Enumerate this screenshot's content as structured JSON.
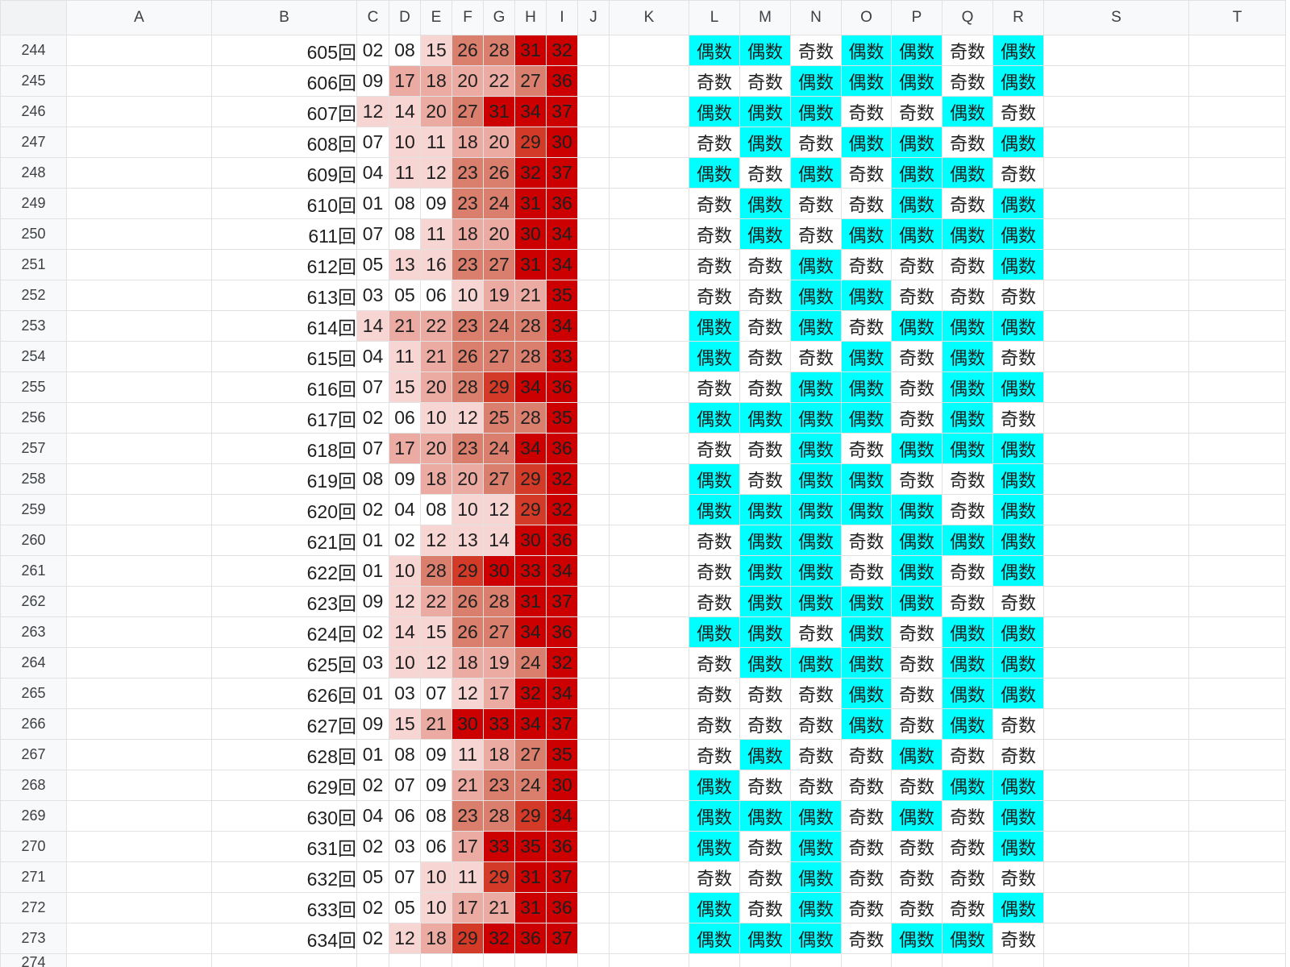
{
  "columns": [
    "A",
    "B",
    "C",
    "D",
    "E",
    "F",
    "G",
    "H",
    "I",
    "J",
    "K",
    "L",
    "M",
    "N",
    "O",
    "P",
    "Q",
    "R",
    "S",
    "T"
  ],
  "partial_row": "274",
  "colors": {
    "even_fill": "#00ffff",
    "heat_scale": [
      "#ffffff",
      "#f6d5d2",
      "#ebaaa2",
      "#da7e6d",
      "#d33a28",
      "#cc0000"
    ]
  },
  "rows": [
    {
      "row": "244",
      "draw": "605回",
      "nums": [
        "02",
        "08",
        "15",
        "26",
        "28",
        "31",
        "32"
      ],
      "parity": [
        "偶数",
        "偶数",
        "奇数",
        "偶数",
        "偶数",
        "奇数",
        "偶数"
      ]
    },
    {
      "row": "245",
      "draw": "606回",
      "nums": [
        "09",
        "17",
        "18",
        "20",
        "22",
        "27",
        "36"
      ],
      "parity": [
        "奇数",
        "奇数",
        "偶数",
        "偶数",
        "偶数",
        "奇数",
        "偶数"
      ]
    },
    {
      "row": "246",
      "draw": "607回",
      "nums": [
        "12",
        "14",
        "20",
        "27",
        "31",
        "34",
        "37"
      ],
      "parity": [
        "偶数",
        "偶数",
        "偶数",
        "奇数",
        "奇数",
        "偶数",
        "奇数"
      ]
    },
    {
      "row": "247",
      "draw": "608回",
      "nums": [
        "07",
        "10",
        "11",
        "18",
        "20",
        "29",
        "30"
      ],
      "parity": [
        "奇数",
        "偶数",
        "奇数",
        "偶数",
        "偶数",
        "奇数",
        "偶数"
      ]
    },
    {
      "row": "248",
      "draw": "609回",
      "nums": [
        "04",
        "11",
        "12",
        "23",
        "26",
        "32",
        "37"
      ],
      "parity": [
        "偶数",
        "奇数",
        "偶数",
        "奇数",
        "偶数",
        "偶数",
        "奇数"
      ]
    },
    {
      "row": "249",
      "draw": "610回",
      "nums": [
        "01",
        "08",
        "09",
        "23",
        "24",
        "31",
        "36"
      ],
      "parity": [
        "奇数",
        "偶数",
        "奇数",
        "奇数",
        "偶数",
        "奇数",
        "偶数"
      ]
    },
    {
      "row": "250",
      "draw": "611回",
      "nums": [
        "07",
        "08",
        "11",
        "18",
        "20",
        "30",
        "34"
      ],
      "parity": [
        "奇数",
        "偶数",
        "奇数",
        "偶数",
        "偶数",
        "偶数",
        "偶数"
      ]
    },
    {
      "row": "251",
      "draw": "612回",
      "nums": [
        "05",
        "13",
        "16",
        "23",
        "27",
        "31",
        "34"
      ],
      "parity": [
        "奇数",
        "奇数",
        "偶数",
        "奇数",
        "奇数",
        "奇数",
        "偶数"
      ]
    },
    {
      "row": "252",
      "draw": "613回",
      "nums": [
        "03",
        "05",
        "06",
        "10",
        "19",
        "21",
        "35"
      ],
      "parity": [
        "奇数",
        "奇数",
        "偶数",
        "偶数",
        "奇数",
        "奇数",
        "奇数"
      ]
    },
    {
      "row": "253",
      "draw": "614回",
      "nums": [
        "14",
        "21",
        "22",
        "23",
        "24",
        "28",
        "34"
      ],
      "parity": [
        "偶数",
        "奇数",
        "偶数",
        "奇数",
        "偶数",
        "偶数",
        "偶数"
      ]
    },
    {
      "row": "254",
      "draw": "615回",
      "nums": [
        "04",
        "11",
        "21",
        "26",
        "27",
        "28",
        "33"
      ],
      "parity": [
        "偶数",
        "奇数",
        "奇数",
        "偶数",
        "奇数",
        "偶数",
        "奇数"
      ]
    },
    {
      "row": "255",
      "draw": "616回",
      "nums": [
        "07",
        "15",
        "20",
        "28",
        "29",
        "34",
        "36"
      ],
      "parity": [
        "奇数",
        "奇数",
        "偶数",
        "偶数",
        "奇数",
        "偶数",
        "偶数"
      ]
    },
    {
      "row": "256",
      "draw": "617回",
      "nums": [
        "02",
        "06",
        "10",
        "12",
        "25",
        "28",
        "35"
      ],
      "parity": [
        "偶数",
        "偶数",
        "偶数",
        "偶数",
        "奇数",
        "偶数",
        "奇数"
      ]
    },
    {
      "row": "257",
      "draw": "618回",
      "nums": [
        "07",
        "17",
        "20",
        "23",
        "24",
        "34",
        "36"
      ],
      "parity": [
        "奇数",
        "奇数",
        "偶数",
        "奇数",
        "偶数",
        "偶数",
        "偶数"
      ]
    },
    {
      "row": "258",
      "draw": "619回",
      "nums": [
        "08",
        "09",
        "18",
        "20",
        "27",
        "29",
        "32"
      ],
      "parity": [
        "偶数",
        "奇数",
        "偶数",
        "偶数",
        "奇数",
        "奇数",
        "偶数"
      ]
    },
    {
      "row": "259",
      "draw": "620回",
      "nums": [
        "02",
        "04",
        "08",
        "10",
        "12",
        "29",
        "32"
      ],
      "parity": [
        "偶数",
        "偶数",
        "偶数",
        "偶数",
        "偶数",
        "奇数",
        "偶数"
      ]
    },
    {
      "row": "260",
      "draw": "621回",
      "nums": [
        "01",
        "02",
        "12",
        "13",
        "14",
        "30",
        "36"
      ],
      "parity": [
        "奇数",
        "偶数",
        "偶数",
        "奇数",
        "偶数",
        "偶数",
        "偶数"
      ]
    },
    {
      "row": "261",
      "draw": "622回",
      "nums": [
        "01",
        "10",
        "28",
        "29",
        "30",
        "33",
        "34"
      ],
      "parity": [
        "奇数",
        "偶数",
        "偶数",
        "奇数",
        "偶数",
        "奇数",
        "偶数"
      ]
    },
    {
      "row": "262",
      "draw": "623回",
      "nums": [
        "09",
        "12",
        "22",
        "26",
        "28",
        "31",
        "37"
      ],
      "parity": [
        "奇数",
        "偶数",
        "偶数",
        "偶数",
        "偶数",
        "奇数",
        "奇数"
      ]
    },
    {
      "row": "263",
      "draw": "624回",
      "nums": [
        "02",
        "14",
        "15",
        "26",
        "27",
        "34",
        "36"
      ],
      "parity": [
        "偶数",
        "偶数",
        "奇数",
        "偶数",
        "奇数",
        "偶数",
        "偶数"
      ]
    },
    {
      "row": "264",
      "draw": "625回",
      "nums": [
        "03",
        "10",
        "12",
        "18",
        "19",
        "24",
        "32"
      ],
      "parity": [
        "奇数",
        "偶数",
        "偶数",
        "偶数",
        "奇数",
        "偶数",
        "偶数"
      ]
    },
    {
      "row": "265",
      "draw": "626回",
      "nums": [
        "01",
        "03",
        "07",
        "12",
        "17",
        "32",
        "34"
      ],
      "parity": [
        "奇数",
        "奇数",
        "奇数",
        "偶数",
        "奇数",
        "偶数",
        "偶数"
      ]
    },
    {
      "row": "266",
      "draw": "627回",
      "nums": [
        "09",
        "15",
        "21",
        "30",
        "33",
        "34",
        "37"
      ],
      "parity": [
        "奇数",
        "奇数",
        "奇数",
        "偶数",
        "奇数",
        "偶数",
        "奇数"
      ]
    },
    {
      "row": "267",
      "draw": "628回",
      "nums": [
        "01",
        "08",
        "09",
        "11",
        "18",
        "27",
        "35"
      ],
      "parity": [
        "奇数",
        "偶数",
        "奇数",
        "奇数",
        "偶数",
        "奇数",
        "奇数"
      ]
    },
    {
      "row": "268",
      "draw": "629回",
      "nums": [
        "02",
        "07",
        "09",
        "21",
        "23",
        "24",
        "30"
      ],
      "parity": [
        "偶数",
        "奇数",
        "奇数",
        "奇数",
        "奇数",
        "偶数",
        "偶数"
      ]
    },
    {
      "row": "269",
      "draw": "630回",
      "nums": [
        "04",
        "06",
        "08",
        "23",
        "28",
        "29",
        "34"
      ],
      "parity": [
        "偶数",
        "偶数",
        "偶数",
        "奇数",
        "偶数",
        "奇数",
        "偶数"
      ]
    },
    {
      "row": "270",
      "draw": "631回",
      "nums": [
        "02",
        "03",
        "06",
        "17",
        "33",
        "35",
        "36"
      ],
      "parity": [
        "偶数",
        "奇数",
        "偶数",
        "奇数",
        "奇数",
        "奇数",
        "偶数"
      ]
    },
    {
      "row": "271",
      "draw": "632回",
      "nums": [
        "05",
        "07",
        "10",
        "11",
        "29",
        "31",
        "37"
      ],
      "parity": [
        "奇数",
        "奇数",
        "偶数",
        "奇数",
        "奇数",
        "奇数",
        "奇数"
      ]
    },
    {
      "row": "272",
      "draw": "633回",
      "nums": [
        "02",
        "05",
        "10",
        "17",
        "21",
        "31",
        "36"
      ],
      "parity": [
        "偶数",
        "奇数",
        "偶数",
        "奇数",
        "奇数",
        "奇数",
        "偶数"
      ]
    },
    {
      "row": "273",
      "draw": "634回",
      "nums": [
        "02",
        "12",
        "18",
        "29",
        "32",
        "36",
        "37"
      ],
      "parity": [
        "偶数",
        "偶数",
        "偶数",
        "奇数",
        "偶数",
        "偶数",
        "奇数"
      ]
    }
  ]
}
